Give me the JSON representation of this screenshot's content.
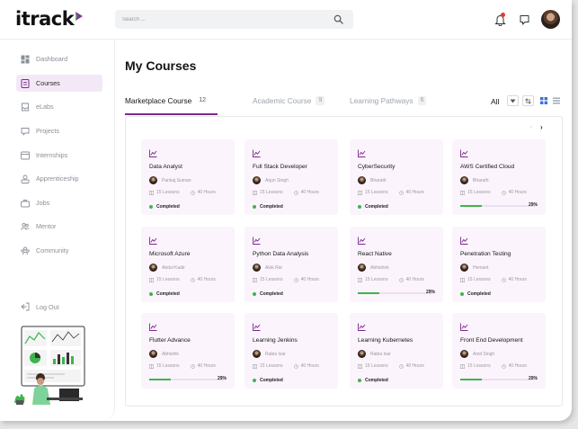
{
  "app": {
    "logo": "itrack"
  },
  "search": {
    "placeholder": "Search ..."
  },
  "sidebar": {
    "items": [
      {
        "label": "Dashboard",
        "icon": "dashboard-icon",
        "active": false
      },
      {
        "label": "Courses",
        "icon": "courses-icon",
        "active": true
      },
      {
        "label": "eLabs",
        "icon": "elabs-icon",
        "active": false
      },
      {
        "label": "Projects",
        "icon": "projects-icon",
        "active": false
      },
      {
        "label": "Internships",
        "icon": "internships-icon",
        "active": false
      },
      {
        "label": "Apprenticeship",
        "icon": "apprenticeship-icon",
        "active": false
      },
      {
        "label": "Jobs",
        "icon": "jobs-icon",
        "active": false
      },
      {
        "label": "Mentor",
        "icon": "mentor-icon",
        "active": false
      },
      {
        "label": "Community",
        "icon": "community-icon",
        "active": false
      }
    ],
    "logout": "Log Out"
  },
  "main": {
    "title": "My Courses",
    "tabs": [
      {
        "label": "Marketplace Course",
        "count": "12",
        "active": true
      },
      {
        "label": "Academic Course",
        "count": "9",
        "active": false
      },
      {
        "label": "Learning Pathways",
        "count": "6",
        "active": false
      }
    ],
    "filter_label": "All",
    "courses": [
      {
        "title": "Data Analyst",
        "author": "Pankaj Suman",
        "lessons": "15 Lessons",
        "hours": "40 Hours",
        "status": "Completed",
        "progress": null
      },
      {
        "title": "Full Stack Developer",
        "author": "Arjun Singh",
        "lessons": "15 Lessons",
        "hours": "40 Hours",
        "status": "Completed",
        "progress": null
      },
      {
        "title": "CyberSecurity",
        "author": "Bharath",
        "lessons": "15 Lessons",
        "hours": "40 Hours",
        "status": "Completed",
        "progress": null
      },
      {
        "title": "AWS Certified Cloud",
        "author": "Bharath",
        "lessons": "15 Lessons",
        "hours": "40 Hours",
        "status": null,
        "progress": 29,
        "progress_label": "29%"
      },
      {
        "title": "Microsoft Azure",
        "author": "Abdul Kadir",
        "lessons": "15 Lessons",
        "hours": "40 Hours",
        "status": "Completed",
        "progress": null
      },
      {
        "title": "Python Data Analysis",
        "author": "Alok Rai",
        "lessons": "15 Lessons",
        "hours": "40 Hours",
        "status": "Completed",
        "progress": null
      },
      {
        "title": "React Native",
        "author": "Abhishek",
        "lessons": "15 Lessons",
        "hours": "40 Hours",
        "status": null,
        "progress": 29,
        "progress_label": "29%"
      },
      {
        "title": "Penetration Testing",
        "author": "Hemant",
        "lessons": "15 Lessons",
        "hours": "40 Hours",
        "status": "Completed",
        "progress": null
      },
      {
        "title": "Flutter Advance",
        "author": "Abhishik",
        "lessons": "15 Lessons",
        "hours": "40 Hours",
        "status": null,
        "progress": 29,
        "progress_label": "29%"
      },
      {
        "title": "Learning Jenkins",
        "author": "Rabia Isar",
        "lessons": "15 Lessons",
        "hours": "40 Hours",
        "status": "Completed",
        "progress": null
      },
      {
        "title": "Learning Kubernetes",
        "author": "Rabia Isar",
        "lessons": "15 Lessons",
        "hours": "40 Hours",
        "status": "Completed",
        "progress": null
      },
      {
        "title": "Front End Development",
        "author": "Amit Singh",
        "lessons": "15 Lessons",
        "hours": "40 Hours",
        "status": null,
        "progress": 29,
        "progress_label": "29%"
      }
    ]
  },
  "colors": {
    "accent": "#7b2a8c",
    "active_nav_bg": "#f3e9f6",
    "card_bg": "#fbf4fc",
    "success": "#3cb54a"
  }
}
